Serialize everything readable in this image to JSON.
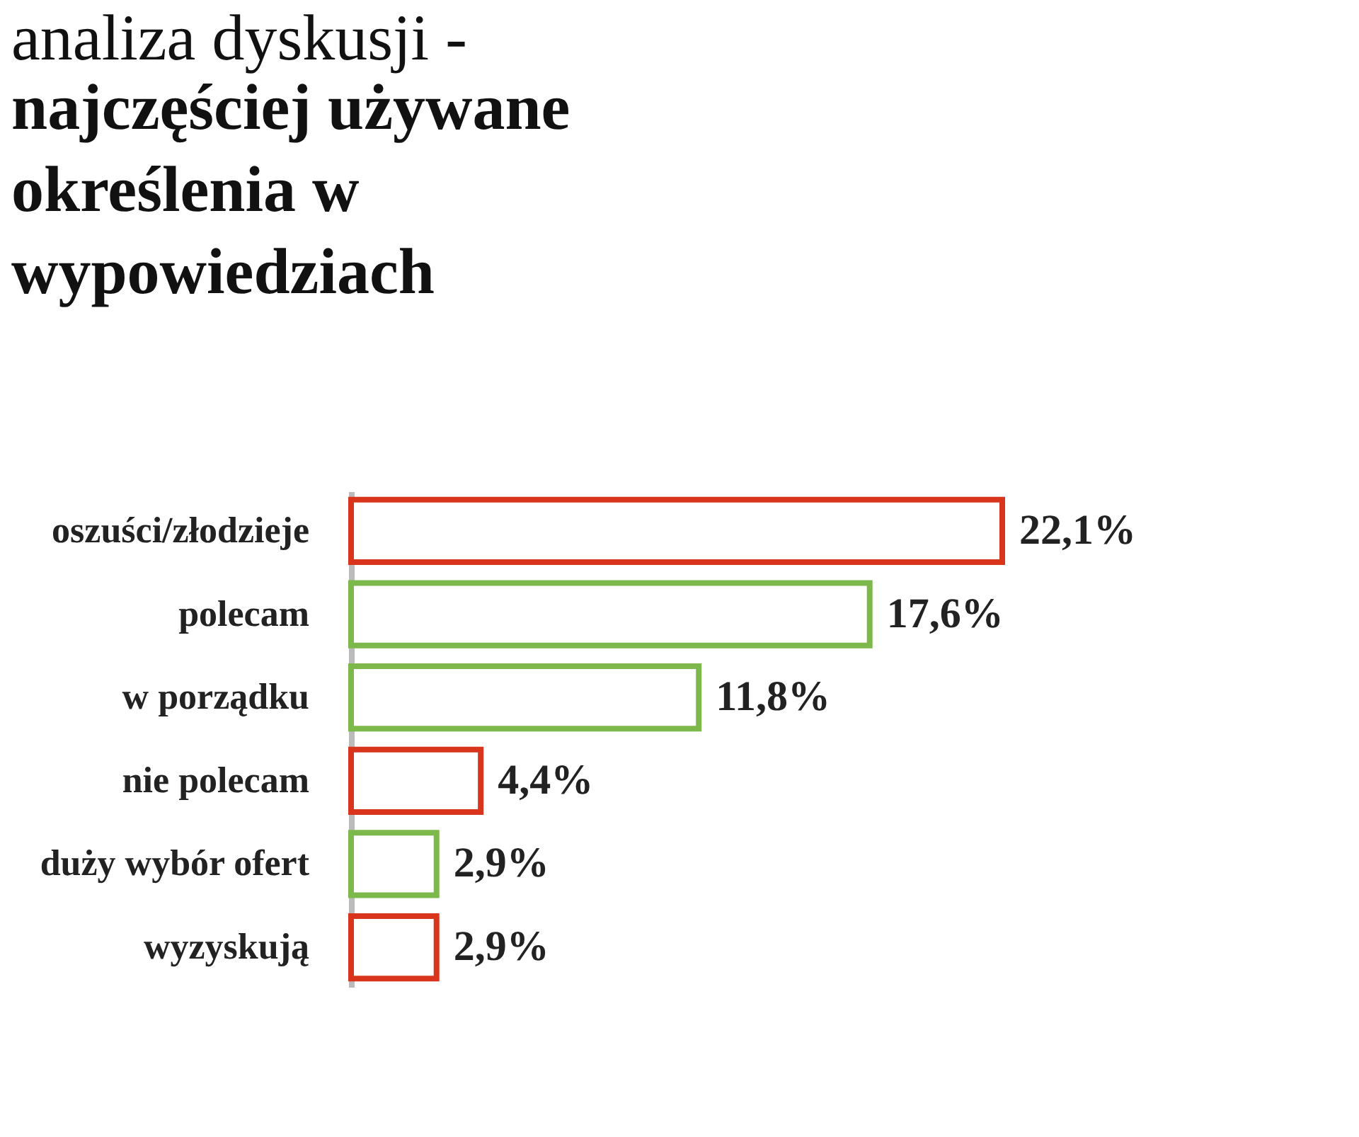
{
  "chart_data": {
    "type": "bar",
    "orientation": "horizontal",
    "title": "analiza dyskusji -",
    "subtitle": "najczęściej używane określenia w wypowiedziach",
    "categories": [
      "oszuści/złodzieje",
      "polecam",
      "w porządku",
      "nie polecam",
      "duży wybór ofert",
      "wyzyskują"
    ],
    "values": [
      22.1,
      17.6,
      11.8,
      4.4,
      2.9,
      2.9
    ],
    "colors": [
      "#d9341c",
      "#7cb84a",
      "#7cb84a",
      "#d9341c",
      "#7cb84a",
      "#d9341c"
    ],
    "value_labels": [
      "22,1%",
      "17,6%",
      "11,8%",
      "4,4%",
      "2,9%",
      "2,9%"
    ],
    "legend": false
  }
}
